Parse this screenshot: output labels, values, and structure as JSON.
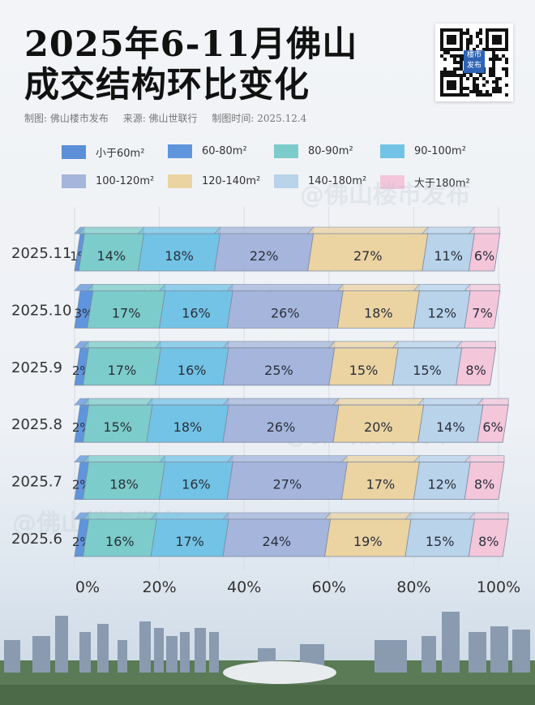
{
  "title_line1": "2025年6-11月佛山",
  "title_line2": "成交结构环比变化",
  "subtitle": {
    "maker": "制图: 佛山楼市发布",
    "source": "来源: 佛山世联行",
    "date": "制图时间: 2025.12.4"
  },
  "qr_logo": "楼市发布",
  "watermark": "@佛山楼市发布",
  "chart_data": {
    "type": "bar",
    "orientation": "horizontal-stacked-100",
    "categories": [
      "2025.11",
      "2025.10",
      "2025.9",
      "2025.8",
      "2025.7",
      "2025.6"
    ],
    "xlim": [
      0,
      100
    ],
    "xticks": [
      "0%",
      "20%",
      "40%",
      "60%",
      "80%",
      "100%"
    ],
    "legend_position": "top",
    "grid": true,
    "series": [
      {
        "name": "小于60m²",
        "color": "#5b8fd8",
        "values": [
          0,
          0,
          0,
          0,
          0,
          0
        ]
      },
      {
        "name": "60-80m²",
        "color": "#5f95dc",
        "values": [
          1,
          3,
          2,
          2,
          2,
          2
        ]
      },
      {
        "name": "80-90m²",
        "color": "#7ccccb",
        "values": [
          14,
          17,
          17,
          15,
          18,
          16
        ]
      },
      {
        "name": "90-100m²",
        "color": "#72c3e6",
        "values": [
          18,
          16,
          16,
          18,
          16,
          17
        ]
      },
      {
        "name": "100-120m²",
        "color": "#a5b5dc",
        "values": [
          22,
          26,
          25,
          26,
          27,
          24
        ]
      },
      {
        "name": "120-140m²",
        "color": "#ebd3a2",
        "values": [
          27,
          18,
          15,
          20,
          17,
          19
        ]
      },
      {
        "name": "140-180m²",
        "color": "#b8d3ea",
        "values": [
          11,
          12,
          15,
          14,
          12,
          15
        ]
      },
      {
        "name": "大于180m²",
        "color": "#f4c6da",
        "values": [
          6,
          7,
          8,
          6,
          8,
          8
        ]
      }
    ]
  }
}
